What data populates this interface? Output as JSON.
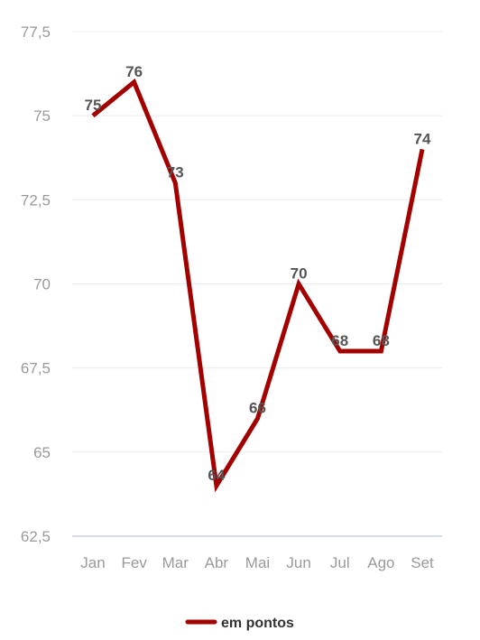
{
  "chart_data": {
    "type": "line",
    "categories": [
      "Jan",
      "Fev",
      "Mar",
      "Abr",
      "Mai",
      "Jun",
      "Jul",
      "Ago",
      "Set"
    ],
    "series": [
      {
        "name": "em pontos",
        "values": [
          75,
          76,
          73,
          64,
          66,
          70,
          68,
          68,
          74
        ]
      }
    ],
    "y_ticks": [
      "62,5",
      "65",
      "67,5",
      "70",
      "72,5",
      "75",
      "77,5"
    ],
    "ylim": [
      62.5,
      77.5
    ],
    "grid": true,
    "legend": "bottom",
    "line_color": "#a30000"
  }
}
